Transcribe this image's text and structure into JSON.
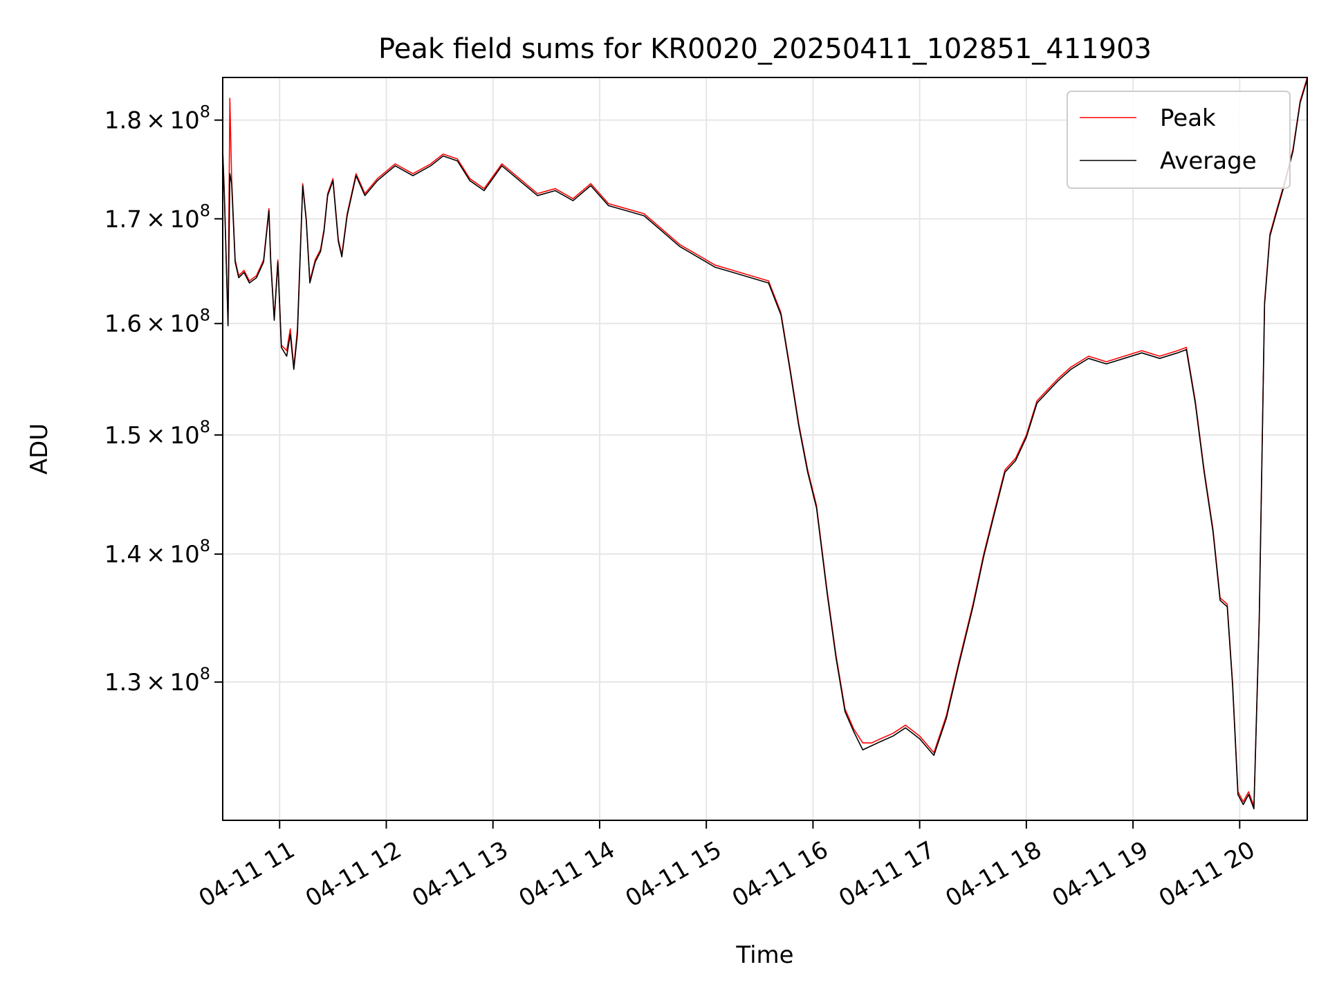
{
  "chart_data": {
    "type": "line",
    "title": "Peak field sums for KR0020_20250411_102851_411903",
    "xlabel": "Time",
    "ylabel": "ADU",
    "y_scale": "log",
    "xlim": [
      "04-11 10:28",
      "04-11 20:38"
    ],
    "ylim": [
      120000000,
      184500000
    ],
    "x_ticks": [
      {
        "t": "04-11 11:00",
        "label": "04-11 11"
      },
      {
        "t": "04-11 12:00",
        "label": "04-11 12"
      },
      {
        "t": "04-11 13:00",
        "label": "04-11 13"
      },
      {
        "t": "04-11 14:00",
        "label": "04-11 14"
      },
      {
        "t": "04-11 15:00",
        "label": "04-11 15"
      },
      {
        "t": "04-11 16:00",
        "label": "04-11 16"
      },
      {
        "t": "04-11 17:00",
        "label": "04-11 17"
      },
      {
        "t": "04-11 18:00",
        "label": "04-11 18"
      },
      {
        "t": "04-11 19:00",
        "label": "04-11 19"
      },
      {
        "t": "04-11 20:00",
        "label": "04-11 20"
      }
    ],
    "y_ticks": [
      {
        "value": 130000000,
        "mantissa": "1.3",
        "exponent": "8"
      },
      {
        "value": 140000000,
        "mantissa": "1.4",
        "exponent": "8"
      },
      {
        "value": 150000000,
        "mantissa": "1.5",
        "exponent": "8"
      },
      {
        "value": 160000000,
        "mantissa": "1.6",
        "exponent": "8"
      },
      {
        "value": 170000000,
        "mantissa": "1.7",
        "exponent": "8"
      },
      {
        "value": 180000000,
        "mantissa": "1.8",
        "exponent": "8"
      }
    ],
    "tick_times_symbol": "×",
    "tick_base": "10",
    "grid": true,
    "legend_position": "top-right",
    "series": [
      {
        "name": "Peak",
        "color": "#ff0000",
        "x": [
          "04-11 10:28",
          "04-11 10:29",
          "04-11 10:31",
          "04-11 10:32",
          "04-11 10:33",
          "04-11 10:35",
          "04-11 10:37",
          "04-11 10:40",
          "04-11 10:43",
          "04-11 10:47",
          "04-11 10:51",
          "04-11 10:54",
          "04-11 10:55",
          "04-11 10:57",
          "04-11 10:59",
          "04-11 11:01",
          "04-11 11:04",
          "04-11 11:06",
          "04-11 11:08",
          "04-11 11:10",
          "04-11 11:13",
          "04-11 11:15",
          "04-11 11:17",
          "04-11 11:20",
          "04-11 11:23",
          "04-11 11:25",
          "04-11 11:27",
          "04-11 11:30",
          "04-11 11:33",
          "04-11 11:35",
          "04-11 11:38",
          "04-11 11:43",
          "04-11 11:48",
          "04-11 11:55",
          "04-11 12:05",
          "04-11 12:15",
          "04-11 12:25",
          "04-11 12:32",
          "04-11 12:40",
          "04-11 12:47",
          "04-11 12:55",
          "04-11 13:05",
          "04-11 13:15",
          "04-11 13:25",
          "04-11 13:35",
          "04-11 13:45",
          "04-11 13:55",
          "04-11 14:05",
          "04-11 14:15",
          "04-11 14:25",
          "04-11 14:35",
          "04-11 14:45",
          "04-11 14:55",
          "04-11 15:05",
          "04-11 15:15",
          "04-11 15:25",
          "04-11 15:35",
          "04-11 15:42",
          "04-11 15:47",
          "04-11 15:52",
          "04-11 15:57",
          "04-11 16:02",
          "04-11 16:08",
          "04-11 16:13",
          "04-11 16:18",
          "04-11 16:23",
          "04-11 16:28",
          "04-11 16:33",
          "04-11 16:38",
          "04-11 16:45",
          "04-11 16:52",
          "04-11 17:00",
          "04-11 17:08",
          "04-11 17:15",
          "04-11 17:22",
          "04-11 17:30",
          "04-11 17:36",
          "04-11 17:42",
          "04-11 17:48",
          "04-11 17:54",
          "04-11 18:00",
          "04-11 18:06",
          "04-11 18:12",
          "04-11 18:18",
          "04-11 18:25",
          "04-11 18:35",
          "04-11 18:45",
          "04-11 18:55",
          "04-11 19:05",
          "04-11 19:15",
          "04-11 19:25",
          "04-11 19:30",
          "04-11 19:35",
          "04-11 19:40",
          "04-11 19:45",
          "04-11 19:49",
          "04-11 19:53",
          "04-11 19:56",
          "04-11 19:59",
          "04-11 20:02",
          "04-11 20:05",
          "04-11 20:08",
          "04-11 20:11",
          "04-11 20:14",
          "04-11 20:17",
          "04-11 20:21",
          "04-11 20:25",
          "04-11 20:30",
          "04-11 20:34",
          "04-11 20:38"
        ],
        "values": [
          177000000,
          172000000,
          160000000,
          182300000,
          174000000,
          166000000,
          164500000,
          165000000,
          164000000,
          164500000,
          166000000,
          171000000,
          166000000,
          160500000,
          166000000,
          158000000,
          157500000,
          159500000,
          156000000,
          159500000,
          173500000,
          170000000,
          164000000,
          166000000,
          167000000,
          169000000,
          172500000,
          174000000,
          168000000,
          166500000,
          170500000,
          174500000,
          172500000,
          174000000,
          175500000,
          174500000,
          175500000,
          176500000,
          176000000,
          174000000,
          173000000,
          175500000,
          174000000,
          172500000,
          173000000,
          172000000,
          173500000,
          171500000,
          171000000,
          170500000,
          169000000,
          167500000,
          166500000,
          165500000,
          165000000,
          164500000,
          164000000,
          161000000,
          156000000,
          151000000,
          147000000,
          144000000,
          137000000,
          132000000,
          128000000,
          126500000,
          125500000,
          125500000,
          125800000,
          126200000,
          126800000,
          126000000,
          124800000,
          127500000,
          131500000,
          136000000,
          140000000,
          143500000,
          147000000,
          148000000,
          150000000,
          153000000,
          154000000,
          155000000,
          156000000,
          157000000,
          156500000,
          157000000,
          157500000,
          157000000,
          157500000,
          157800000,
          153000000,
          147000000,
          142000000,
          136500000,
          136000000,
          130000000,
          122000000,
          121300000,
          122000000,
          121000000,
          135000000,
          162000000,
          168500000,
          171000000,
          173500000,
          177000000,
          182000000,
          184500000
        ]
      },
      {
        "name": "Average",
        "color": "#000000",
        "x": [
          "04-11 10:28",
          "04-11 10:29",
          "04-11 10:31",
          "04-11 10:32",
          "04-11 10:33",
          "04-11 10:35",
          "04-11 10:37",
          "04-11 10:40",
          "04-11 10:43",
          "04-11 10:47",
          "04-11 10:51",
          "04-11 10:54",
          "04-11 10:55",
          "04-11 10:57",
          "04-11 10:59",
          "04-11 11:01",
          "04-11 11:04",
          "04-11 11:06",
          "04-11 11:08",
          "04-11 11:10",
          "04-11 11:13",
          "04-11 11:15",
          "04-11 11:17",
          "04-11 11:20",
          "04-11 11:23",
          "04-11 11:25",
          "04-11 11:27",
          "04-11 11:30",
          "04-11 11:33",
          "04-11 11:35",
          "04-11 11:38",
          "04-11 11:43",
          "04-11 11:48",
          "04-11 11:55",
          "04-11 12:05",
          "04-11 12:15",
          "04-11 12:25",
          "04-11 12:32",
          "04-11 12:40",
          "04-11 12:47",
          "04-11 12:55",
          "04-11 13:05",
          "04-11 13:15",
          "04-11 13:25",
          "04-11 13:35",
          "04-11 13:45",
          "04-11 13:55",
          "04-11 14:05",
          "04-11 14:15",
          "04-11 14:25",
          "04-11 14:35",
          "04-11 14:45",
          "04-11 14:55",
          "04-11 15:05",
          "04-11 15:15",
          "04-11 15:25",
          "04-11 15:35",
          "04-11 15:42",
          "04-11 15:47",
          "04-11 15:52",
          "04-11 15:57",
          "04-11 16:02",
          "04-11 16:08",
          "04-11 16:13",
          "04-11 16:18",
          "04-11 16:23",
          "04-11 16:28",
          "04-11 16:33",
          "04-11 16:38",
          "04-11 16:45",
          "04-11 16:52",
          "04-11 17:00",
          "04-11 17:08",
          "04-11 17:15",
          "04-11 17:22",
          "04-11 17:30",
          "04-11 17:36",
          "04-11 17:42",
          "04-11 17:48",
          "04-11 17:54",
          "04-11 18:00",
          "04-11 18:06",
          "04-11 18:12",
          "04-11 18:18",
          "04-11 18:25",
          "04-11 18:35",
          "04-11 18:45",
          "04-11 18:55",
          "04-11 19:05",
          "04-11 19:15",
          "04-11 19:25",
          "04-11 19:30",
          "04-11 19:35",
          "04-11 19:40",
          "04-11 19:45",
          "04-11 19:49",
          "04-11 19:53",
          "04-11 19:56",
          "04-11 19:59",
          "04-11 20:02",
          "04-11 20:05",
          "04-11 20:08",
          "04-11 20:11",
          "04-11 20:14",
          "04-11 20:17",
          "04-11 20:21",
          "04-11 20:25",
          "04-11 20:30",
          "04-11 20:34",
          "04-11 20:38"
        ],
        "values": [
          176800000,
          171800000,
          159800000,
          174500000,
          173500000,
          165800000,
          164300000,
          164800000,
          163800000,
          164300000,
          165800000,
          170800000,
          165800000,
          160300000,
          165800000,
          157800000,
          157000000,
          159000000,
          155800000,
          159000000,
          173300000,
          169800000,
          163800000,
          165800000,
          166800000,
          168800000,
          172300000,
          173800000,
          167800000,
          166300000,
          170300000,
          174300000,
          172300000,
          173800000,
          175300000,
          174300000,
          175300000,
          176300000,
          175800000,
          173800000,
          172800000,
          175300000,
          173800000,
          172300000,
          172800000,
          171800000,
          173300000,
          171300000,
          170800000,
          170300000,
          168800000,
          167300000,
          166300000,
          165300000,
          164800000,
          164300000,
          163800000,
          160800000,
          155800000,
          150800000,
          146800000,
          143800000,
          136800000,
          131800000,
          127800000,
          126300000,
          125000000,
          125300000,
          125600000,
          126000000,
          126600000,
          125800000,
          124600000,
          127300000,
          131300000,
          135800000,
          139800000,
          143300000,
          146800000,
          147800000,
          149800000,
          152800000,
          153800000,
          154800000,
          155800000,
          156800000,
          156300000,
          156800000,
          157300000,
          156800000,
          157300000,
          157600000,
          152800000,
          146800000,
          141800000,
          136300000,
          135800000,
          129800000,
          121800000,
          121100000,
          121800000,
          120800000,
          134800000,
          161800000,
          168300000,
          170800000,
          173300000,
          176800000,
          181800000,
          184300000
        ]
      }
    ]
  }
}
